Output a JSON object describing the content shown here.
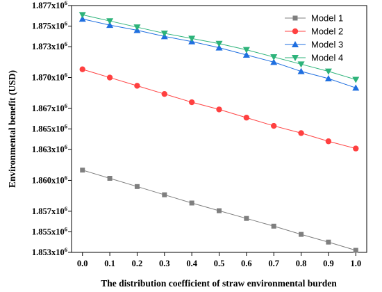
{
  "chart_data": {
    "type": "line",
    "title": "",
    "xlabel": "The distribution coefficient of straw environmental burden",
    "ylabel": "Environmental benefit (USD)",
    "x": [
      0.0,
      0.1,
      0.2,
      0.3,
      0.4,
      0.5,
      0.6,
      0.7,
      0.8,
      0.9,
      1.0
    ],
    "x_tick_labels": [
      "0.0",
      "0.1",
      "0.2",
      "0.3",
      "0.4",
      "0.5",
      "0.6",
      "0.7",
      "0.8",
      "0.9",
      "1.0"
    ],
    "xlim": [
      -0.04,
      1.04
    ],
    "ylim": [
      1853000,
      1877000
    ],
    "y_ticks": [
      1853000,
      1855000,
      1857000,
      1860000,
      1863000,
      1865000,
      1867000,
      1870000,
      1873000,
      1875000,
      1877000
    ],
    "y_tick_labels": [
      {
        "base": "1.853x10",
        "exp": "6"
      },
      {
        "base": "1.855x10",
        "exp": "6"
      },
      {
        "base": "1.857x10",
        "exp": "6"
      },
      {
        "base": "1.860x10",
        "exp": "6"
      },
      {
        "base": "1.863x10",
        "exp": "6"
      },
      {
        "base": "1.865x10",
        "exp": "6"
      },
      {
        "base": "1.867x10",
        "exp": "6"
      },
      {
        "base": "1.870x10",
        "exp": "6"
      },
      {
        "base": "1.873x10",
        "exp": "6"
      },
      {
        "base": "1.875x10",
        "exp": "6"
      },
      {
        "base": "1.877x10",
        "exp": "6"
      }
    ],
    "grid": false,
    "legend_position": "top-right",
    "series": [
      {
        "name": "Model 1",
        "color": "#7f7f7f",
        "marker": "square",
        "values": [
          1861000,
          1860200,
          1859400,
          1858600,
          1857800,
          1857050,
          1856300,
          1855550,
          1854750,
          1854000,
          1853200
        ]
      },
      {
        "name": "Model 2",
        "color": "#ff4040",
        "marker": "circle",
        "values": [
          1870800,
          1870000,
          1869200,
          1868400,
          1867600,
          1866900,
          1866100,
          1865300,
          1864600,
          1863800,
          1863100
        ]
      },
      {
        "name": "Model 3",
        "color": "#1f6fe0",
        "marker": "triangle-up",
        "values": [
          1875700,
          1875100,
          1874600,
          1874000,
          1873500,
          1872900,
          1872200,
          1871500,
          1870600,
          1869900,
          1869000
        ]
      },
      {
        "name": "Model 4",
        "color": "#2db37a",
        "marker": "triangle-down",
        "values": [
          1876100,
          1875500,
          1874900,
          1874300,
          1873800,
          1873300,
          1872700,
          1872000,
          1871300,
          1870600,
          1869800
        ]
      }
    ]
  }
}
